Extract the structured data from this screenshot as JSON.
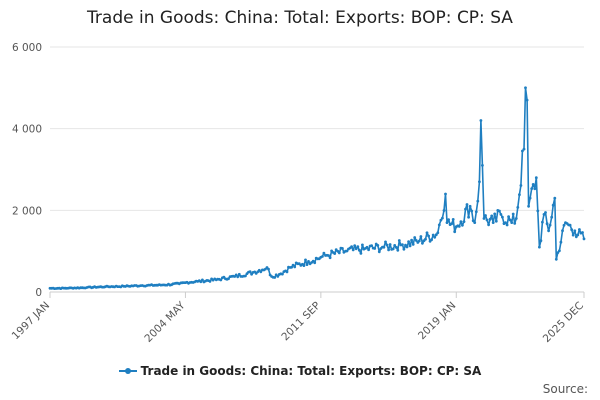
{
  "chart_data": {
    "type": "line",
    "title": "Trade in Goods: China: Total: Exports: BOP: CP: SA",
    "xlabel": "",
    "ylabel": "",
    "ylim": [
      0,
      6000
    ],
    "yticks": [
      "0",
      "2 000",
      "4 000",
      "6 000"
    ],
    "yticks_values": [
      0,
      2000,
      4000,
      6000
    ],
    "xticks": [
      "1997 JAN",
      "2004 MAY",
      "2011 SEP",
      "2019 JAN",
      "2025 DEC"
    ],
    "legend_position": "bottom",
    "grid": true,
    "frequency": "monthly",
    "x_start": "1997 JAN",
    "x_end": "2025 DEC",
    "anchors": [
      [
        "1997 JAN",
        90
      ],
      [
        "1998 JAN",
        95
      ],
      [
        "1999 JAN",
        110
      ],
      [
        "2000 JAN",
        130
      ],
      [
        "2001 JAN",
        140
      ],
      [
        "2002 JAN",
        160
      ],
      [
        "2003 JAN",
        170
      ],
      [
        "2004 JAN",
        200
      ],
      [
        "2004 MAY",
        230
      ],
      [
        "2005 JAN",
        260
      ],
      [
        "2006 JAN",
        300
      ],
      [
        "2007 JAN",
        380
      ],
      [
        "2008 JAN",
        480
      ],
      [
        "2008 OCT",
        600
      ],
      [
        "2009 JAN",
        380
      ],
      [
        "2009 JUN",
        430
      ],
      [
        "2010 JAN",
        600
      ],
      [
        "2011 JAN",
        750
      ],
      [
        "2011 SEP",
        850
      ],
      [
        "2012 JAN",
        900
      ],
      [
        "2013 JAN",
        1000
      ],
      [
        "2014 JAN",
        1050
      ],
      [
        "2015 JAN",
        1100
      ],
      [
        "2016 JAN",
        1150
      ],
      [
        "2017 JAN",
        1250
      ],
      [
        "2018 JAN",
        1450
      ],
      [
        "2018 JUN",
        2400
      ],
      [
        "2018 JUL",
        1700
      ],
      [
        "2019 JAN",
        1600
      ],
      [
        "2019 OCT",
        2100
      ],
      [
        "2020 JAN",
        1700
      ],
      [
        "2020 APR",
        2700
      ],
      [
        "2020 MAY",
        4200
      ],
      [
        "2020 JUN",
        3100
      ],
      [
        "2020 JUL",
        1800
      ],
      [
        "2021 JAN",
        1700
      ],
      [
        "2021 JUN",
        1900
      ],
      [
        "2022 JAN",
        1700
      ],
      [
        "2022 APR",
        1800
      ],
      [
        "2022 SEP",
        3500
      ],
      [
        "2022 OCT",
        5000
      ],
      [
        "2022 NOV",
        4700
      ],
      [
        "2022 DEC",
        2100
      ],
      [
        "2023 MAY",
        2800
      ],
      [
        "2023 JUL",
        1100
      ],
      [
        "2023 OCT",
        1900
      ],
      [
        "2024 JAN",
        1500
      ],
      [
        "2024 MAY",
        2300
      ],
      [
        "2024 JUN",
        800
      ],
      [
        "2024 DEC",
        1700
      ],
      [
        "2025 JUN",
        1500
      ],
      [
        "2025 DEC",
        1300
      ]
    ]
  },
  "legend": {
    "label": "Trade in Goods: China: Total: Exports: BOP: CP: SA"
  },
  "footer": {
    "source": "Source:"
  },
  "colors": {
    "series": "#1f7fc1",
    "grid": "#e6e6e6",
    "axis": "#cccccc"
  }
}
